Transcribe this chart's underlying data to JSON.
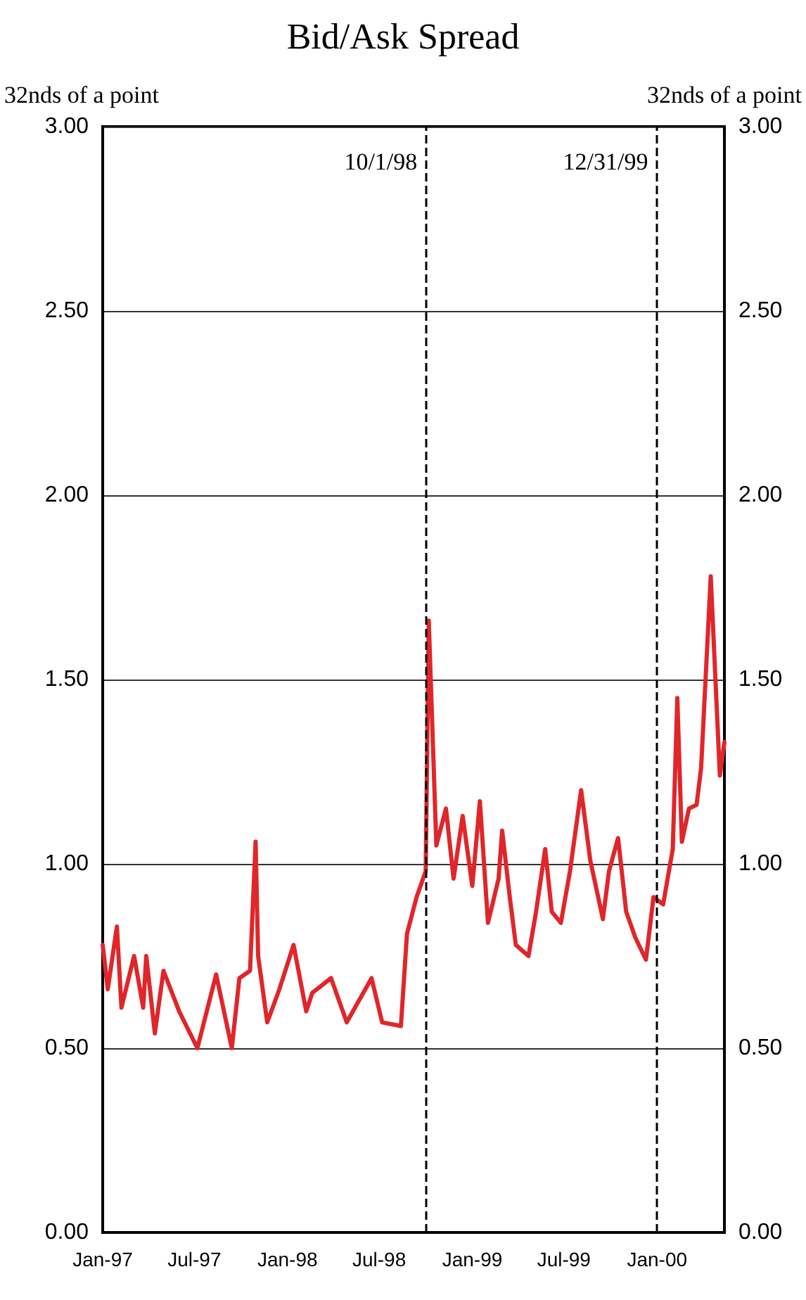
{
  "chart_data": {
    "type": "line",
    "title": "Bid/Ask Spread",
    "ylabel": "32nds of a point",
    "y2label": "32nds of a point",
    "x": [
      "1997-01-01",
      "1997-01-11",
      "1997-01-29",
      "1997-02-07",
      "1997-03-04",
      "1997-03-22",
      "1997-03-28",
      "1997-04-14",
      "1997-05-01",
      "1997-06-01",
      "1997-07-07",
      "1997-08-13",
      "1997-09-13",
      "1997-09-28",
      "1997-10-19",
      "1997-10-30",
      "1997-11-04",
      "1997-11-22",
      "1997-12-16",
      "1998-01-13",
      "1998-02-07",
      "1998-02-19",
      "1998-03-28",
      "1998-04-28",
      "1998-06-16",
      "1998-07-07",
      "1998-08-13",
      "1998-08-25",
      "1998-09-13",
      "1998-10-01",
      "1998-10-07",
      "1998-10-22",
      "1998-11-10",
      "1998-11-25",
      "1998-12-13",
      "1999-01-01",
      "1999-01-16",
      "1999-02-01",
      "1999-02-22",
      "1999-03-01",
      "1999-03-16",
      "1999-03-28",
      "1999-04-22",
      "1999-05-07",
      "1999-05-25",
      "1999-06-07",
      "1999-06-25",
      "1999-07-13",
      "1999-08-04",
      "1999-08-22",
      "1999-09-16",
      "1999-09-28",
      "1999-10-16",
      "1999-11-01",
      "1999-11-19",
      "1999-12-10",
      "1999-12-25",
      "2000-01-13",
      "2000-02-01",
      "2000-02-10",
      "2000-02-19",
      "2000-03-04",
      "2000-03-19",
      "2000-03-28",
      "2000-04-16",
      "2000-05-04",
      "2000-05-13"
    ],
    "values": [
      0.78,
      0.66,
      0.83,
      0.61,
      0.75,
      0.61,
      0.75,
      0.54,
      0.71,
      0.6,
      0.5,
      0.7,
      0.5,
      0.69,
      0.71,
      1.06,
      0.75,
      0.57,
      0.66,
      0.78,
      0.6,
      0.65,
      0.69,
      0.57,
      0.69,
      0.57,
      0.56,
      0.81,
      0.91,
      0.98,
      1.66,
      1.05,
      1.15,
      0.96,
      1.13,
      0.94,
      1.17,
      0.84,
      0.96,
      1.09,
      0.91,
      0.78,
      0.75,
      0.87,
      1.04,
      0.87,
      0.84,
      0.98,
      1.2,
      1.01,
      0.85,
      0.98,
      1.07,
      0.87,
      0.8,
      0.74,
      0.91,
      0.89,
      1.04,
      1.45,
      1.06,
      1.15,
      1.16,
      1.26,
      1.78,
      1.24,
      1.33
    ],
    "color": "#e0262a",
    "marker": "none",
    "grid": "y",
    "xlim": [
      "1997-01-01",
      "2000-05-13"
    ],
    "xticks": [
      {
        "value": "1997-01-01",
        "label": "Jan-97"
      },
      {
        "value": "1997-07-01",
        "label": "Jul-97"
      },
      {
        "value": "1998-01-01",
        "label": "Jan-98"
      },
      {
        "value": "1998-07-01",
        "label": "Jul-98"
      },
      {
        "value": "1999-01-01",
        "label": "Jan-99"
      },
      {
        "value": "1999-07-01",
        "label": "Jul-99"
      },
      {
        "value": "2000-01-01",
        "label": "Jan-00"
      }
    ],
    "ylim": [
      0,
      3
    ],
    "yticks": [
      {
        "value": 0,
        "label": "0.00"
      },
      {
        "value": 0.5,
        "label": "0.50"
      },
      {
        "value": 1,
        "label": "1.00"
      },
      {
        "value": 1.5,
        "label": "1.50"
      },
      {
        "value": 2,
        "label": "2.00"
      },
      {
        "value": 2.5,
        "label": "2.50"
      },
      {
        "value": 3,
        "label": "3.00"
      }
    ],
    "y2lim": [
      0,
      3
    ],
    "y2ticks": [
      {
        "value": 0,
        "label": "0.00"
      },
      {
        "value": 0.5,
        "label": "0.50"
      },
      {
        "value": 1,
        "label": "1.00"
      },
      {
        "value": 1.5,
        "label": "1.50"
      },
      {
        "value": 2,
        "label": "2.00"
      },
      {
        "value": 2.5,
        "label": "2.50"
      },
      {
        "value": 3,
        "label": "3.00"
      }
    ],
    "ref_lines": [
      {
        "axis": "x",
        "value": "1998-10-01",
        "label": "10/1/98",
        "color": "#000000",
        "line_style": "dashed"
      },
      {
        "axis": "x",
        "value": "1999-12-31",
        "label": "12/31/99",
        "color": "#000000",
        "line_style": "dashed"
      }
    ]
  }
}
